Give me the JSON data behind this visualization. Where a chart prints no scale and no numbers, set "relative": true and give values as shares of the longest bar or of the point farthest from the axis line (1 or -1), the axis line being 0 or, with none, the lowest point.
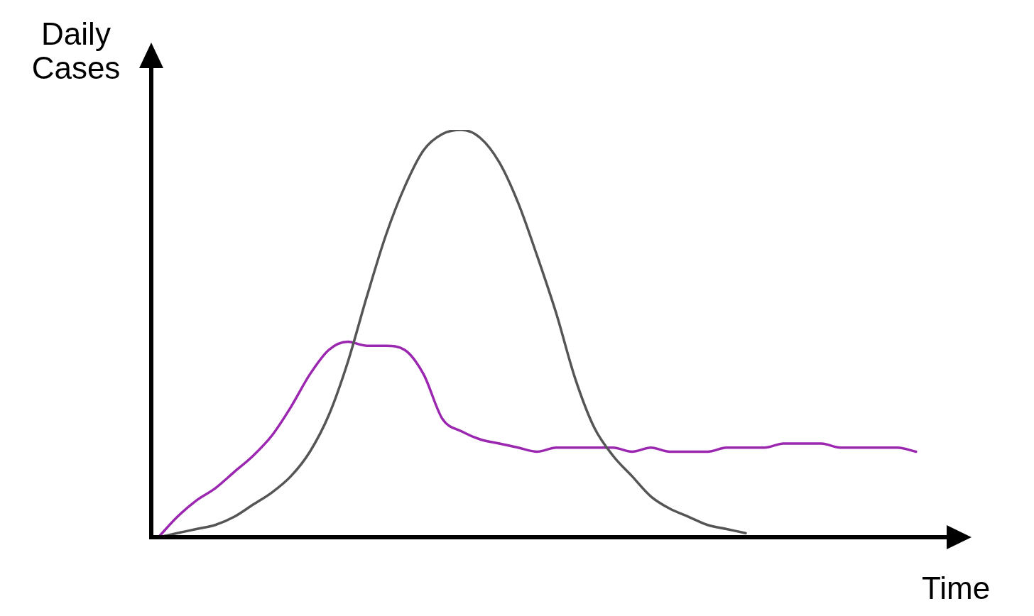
{
  "chart_data": {
    "type": "line",
    "relative": true,
    "xlabel": "Time",
    "ylabel": "Daily Cases",
    "categories": [
      null,
      null,
      null,
      null,
      null,
      null,
      null,
      null,
      null,
      null,
      null,
      null,
      null,
      null,
      null,
      null,
      null,
      null,
      null,
      null,
      null,
      null,
      null,
      null,
      null,
      null,
      null,
      null,
      null,
      null,
      null,
      null,
      null,
      null,
      null,
      null,
      null,
      null,
      null,
      null,
      null
    ],
    "series": [
      {
        "color": "#555555",
        "values": [
          0,
          0.01,
          0.02,
          0.03,
          0.05,
          0.08,
          0.11,
          0.15,
          0.21,
          0.3,
          0.43,
          0.59,
          0.74,
          0.86,
          0.95,
          0.99,
          1,
          0.98,
          0.92,
          0.82,
          0.69,
          0.55,
          0.39,
          0.27,
          0.2,
          0.15,
          0.1,
          0.07,
          0.05,
          0.03,
          0.02,
          0.01,
          null,
          null,
          null,
          null,
          null,
          null,
          null,
          null,
          null
        ]
      },
      {
        "color": "#9b27b0",
        "values": [
          0,
          0.05,
          0.09,
          0.12,
          0.16,
          0.2,
          0.25,
          0.32,
          0.4,
          0.46,
          0.48,
          0.47,
          0.47,
          0.46,
          0.4,
          0.29,
          0.26,
          0.24,
          0.23,
          0.22,
          0.21,
          0.22,
          0.22,
          0.22,
          0.22,
          0.21,
          0.22,
          0.21,
          0.21,
          0.21,
          0.22,
          0.22,
          0.22,
          0.23,
          0.23,
          0.23,
          0.22,
          0.22,
          0.22,
          0.22,
          0.21
        ]
      }
    ]
  }
}
